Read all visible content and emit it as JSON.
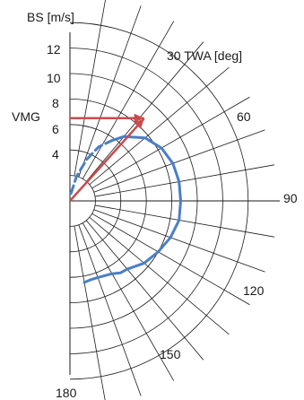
{
  "labels": {
    "y_axis": "BS [m/s]",
    "twa_axis": "30 TWA [deg]",
    "vmg": "VMG",
    "bs_ticks": [
      "12",
      "10",
      "8",
      "6",
      "4"
    ],
    "angle_60": "60",
    "angle_90": "90",
    "angle_120": "120",
    "angle_150": "150",
    "angle_180": "180"
  },
  "chart_data": {
    "type": "polar",
    "radial_quantity": "BS",
    "angular_quantity": "TWA",
    "radial_ticks": [
      4,
      6,
      8,
      10,
      12
    ],
    "angle_ticks": [
      30,
      60,
      90,
      120,
      150,
      180
    ],
    "series": [
      {
        "style": "solid",
        "color": "#4a7ec7",
        "points": [
          {
            "twa": 35,
            "bs": 5.8
          },
          {
            "twa": 40,
            "bs": 6.6
          },
          {
            "twa": 50,
            "bs": 7.7
          },
          {
            "twa": 60,
            "bs": 8.3
          },
          {
            "twa": 70,
            "bs": 8.6
          },
          {
            "twa": 80,
            "bs": 8.7
          },
          {
            "twa": 90,
            "bs": 8.7
          },
          {
            "twa": 100,
            "bs": 8.7
          },
          {
            "twa": 110,
            "bs": 8.4
          },
          {
            "twa": 120,
            "bs": 8.0
          },
          {
            "twa": 130,
            "bs": 7.6
          },
          {
            "twa": 140,
            "bs": 7.0
          },
          {
            "twa": 145,
            "bs": 6.9
          },
          {
            "twa": 150,
            "bs": 6.6
          },
          {
            "twa": 160,
            "bs": 6.4
          },
          {
            "twa": 165,
            "bs": 6.4
          },
          {
            "twa": 170,
            "bs": 6.5
          }
        ]
      },
      {
        "style": "dashed",
        "color": "#4a7ec7",
        "points": [
          {
            "twa": 8,
            "bs": 0.6
          },
          {
            "twa": 15,
            "bs": 2.0
          },
          {
            "twa": 22,
            "bs": 3.5
          },
          {
            "twa": 28,
            "bs": 4.8
          },
          {
            "twa": 35,
            "bs": 5.8
          }
        ]
      }
    ],
    "vectors": [
      {
        "name": "optimal-heading",
        "twa": 42,
        "bs": 8.7,
        "color": "#c94b4b"
      },
      {
        "name": "vmg",
        "twa": 0,
        "bs": 6.5,
        "color": "#c94b4b"
      }
    ]
  }
}
